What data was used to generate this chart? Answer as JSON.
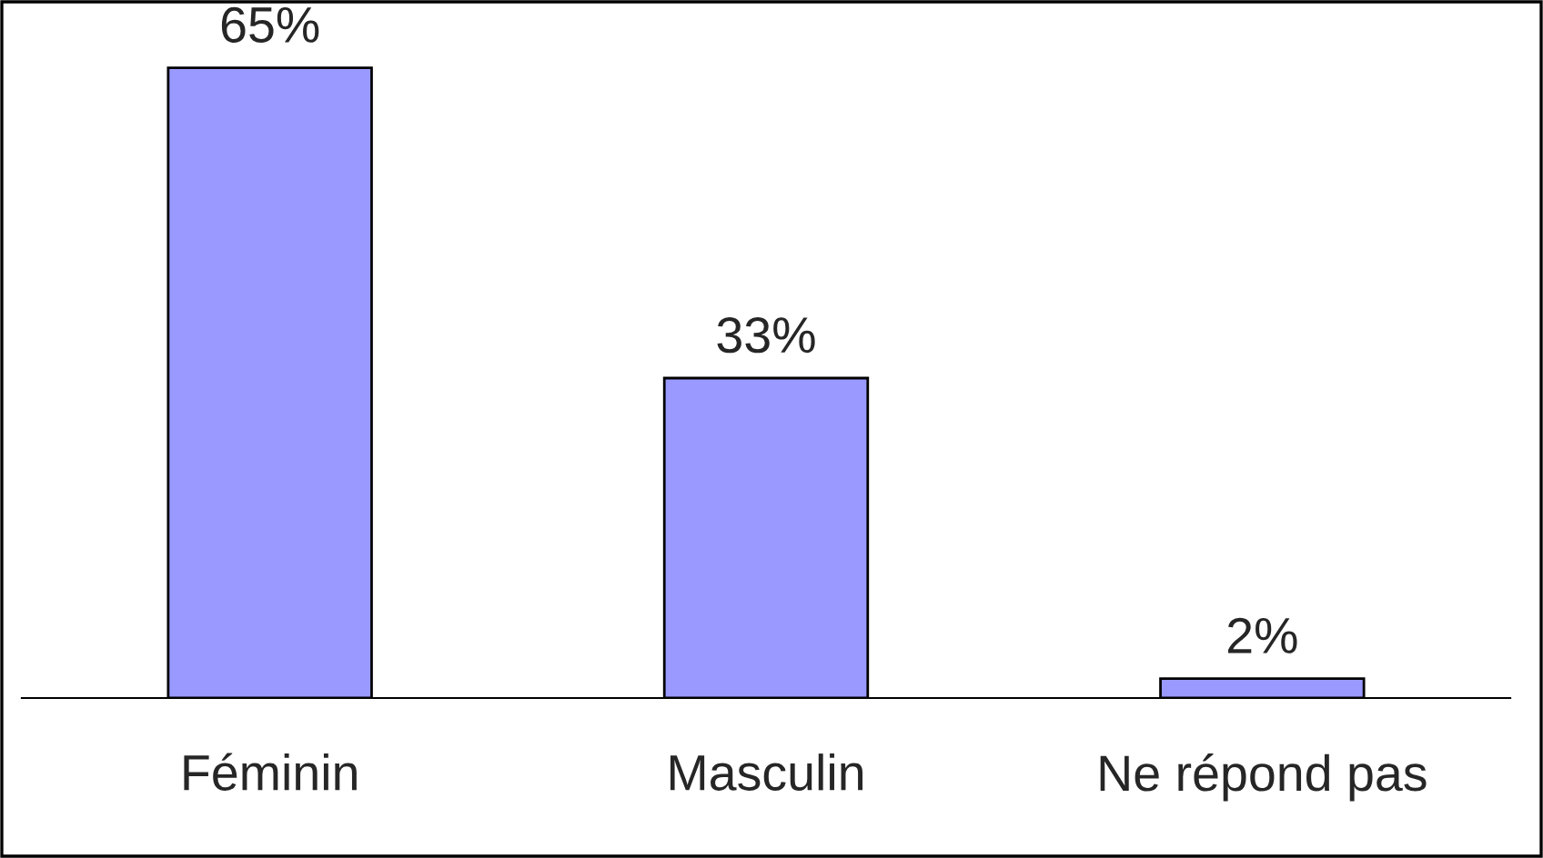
{
  "chart_data": {
    "type": "bar",
    "categories": [
      "Féminin",
      "Masculin",
      "Ne répond pas"
    ],
    "values": [
      65,
      33,
      2
    ],
    "value_labels": [
      "65%",
      "33%",
      "2%"
    ],
    "color": "#9999ff",
    "grid": false,
    "legend": false
  }
}
